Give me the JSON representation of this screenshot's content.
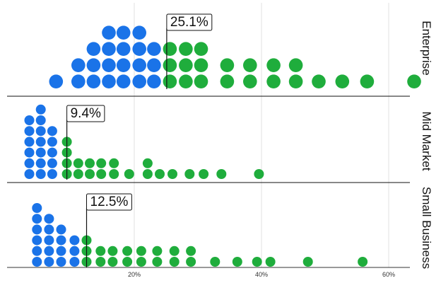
{
  "chart_data": {
    "type": "scatter",
    "subtype": "dot-histogram (dot plot) faceted by segment",
    "xlim": [
      0,
      65
    ],
    "x_ticks": [
      {
        "value": 20,
        "label": "20%"
      },
      {
        "value": 40,
        "label": "40%"
      },
      {
        "value": 60,
        "label": "60%"
      }
    ],
    "grid": "vertical",
    "colors": {
      "below_median": "#1a73e8",
      "above_median": "#1fad3c",
      "grid": "#e0e0e0"
    },
    "facets": [
      {
        "name": "Enterprise",
        "median": 25.1,
        "median_label": "25.1%",
        "bins": [
          {
            "x": 7.7,
            "count": 1
          },
          {
            "x": 11.2,
            "count": 2
          },
          {
            "x": 13.6,
            "count": 3
          },
          {
            "x": 16.0,
            "count": 4
          },
          {
            "x": 18.3,
            "count": 4
          },
          {
            "x": 20.8,
            "count": 4
          },
          {
            "x": 23.1,
            "count": 3
          },
          {
            "x": 25.6,
            "count": 3
          },
          {
            "x": 28.1,
            "count": 3
          },
          {
            "x": 30.5,
            "count": 3
          },
          {
            "x": 34.6,
            "count": 2
          },
          {
            "x": 38.2,
            "count": 2
          },
          {
            "x": 41.9,
            "count": 2
          },
          {
            "x": 45.4,
            "count": 2
          },
          {
            "x": 49.0,
            "count": 1
          },
          {
            "x": 52.7,
            "count": 1
          },
          {
            "x": 56.6,
            "count": 1
          },
          {
            "x": 64.0,
            "count": 1
          }
        ]
      },
      {
        "name": "Mid Market",
        "median": 9.4,
        "median_label": "9.4%",
        "bins": [
          {
            "x": 3.5,
            "count": 6
          },
          {
            "x": 5.3,
            "count": 7
          },
          {
            "x": 7.1,
            "count": 5
          },
          {
            "x": 9.4,
            "count": 4
          },
          {
            "x": 11.2,
            "count": 2
          },
          {
            "x": 13.0,
            "count": 2
          },
          {
            "x": 14.8,
            "count": 2
          },
          {
            "x": 16.8,
            "count": 2
          },
          {
            "x": 19.2,
            "count": 1
          },
          {
            "x": 22.1,
            "count": 2
          },
          {
            "x": 24.0,
            "count": 1
          },
          {
            "x": 26.0,
            "count": 1
          },
          {
            "x": 28.7,
            "count": 1
          },
          {
            "x": 30.9,
            "count": 1
          },
          {
            "x": 33.7,
            "count": 1
          },
          {
            "x": 39.6,
            "count": 1
          }
        ]
      },
      {
        "name": "Small Business",
        "median": 12.5,
        "median_label": "12.5%",
        "bins": [
          {
            "x": 4.7,
            "count": 6
          },
          {
            "x": 6.6,
            "count": 5
          },
          {
            "x": 8.5,
            "count": 4
          },
          {
            "x": 10.6,
            "count": 3
          },
          {
            "x": 12.5,
            "count": 3
          },
          {
            "x": 14.7,
            "count": 2
          },
          {
            "x": 16.6,
            "count": 2
          },
          {
            "x": 18.9,
            "count": 2
          },
          {
            "x": 21.1,
            "count": 2
          },
          {
            "x": 23.6,
            "count": 2
          },
          {
            "x": 26.3,
            "count": 2
          },
          {
            "x": 28.9,
            "count": 2
          },
          {
            "x": 32.7,
            "count": 1
          },
          {
            "x": 36.2,
            "count": 1
          },
          {
            "x": 39.3,
            "count": 1
          },
          {
            "x": 41.4,
            "count": 1
          },
          {
            "x": 47.3,
            "count": 1
          },
          {
            "x": 55.9,
            "count": 1
          }
        ]
      }
    ]
  }
}
